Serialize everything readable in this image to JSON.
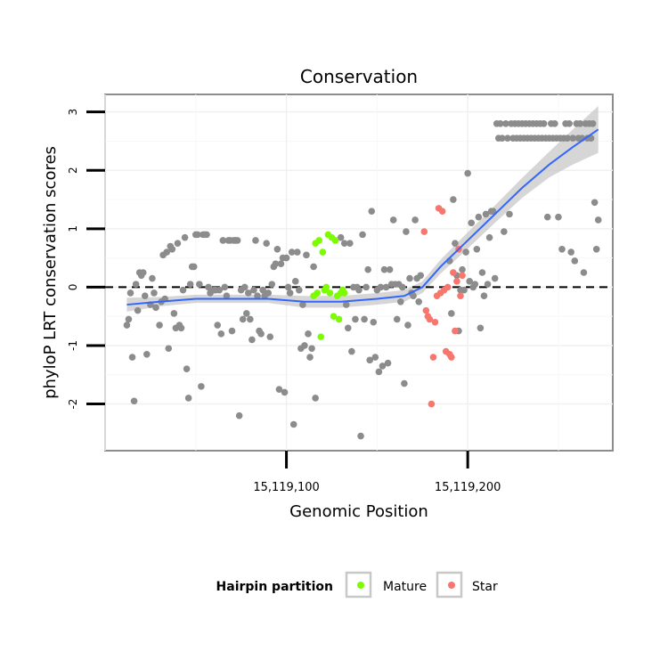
{
  "chart_data": {
    "type": "scatter",
    "title": "Conservation",
    "xlabel": "Genomic Position",
    "ylabel": "phyloP LRT conservation scores",
    "xlim": [
      15119000,
      15119280
    ],
    "ylim": [
      -2.8,
      3.3
    ],
    "x_ticks": [
      {
        "value": 15119100,
        "label": "15,119,100"
      },
      {
        "value": 15119200,
        "label": "15,119,200"
      }
    ],
    "y_ticks": [
      {
        "value": -2,
        "label": "-2"
      },
      {
        "value": -1,
        "label": "-1"
      },
      {
        "value": 0,
        "label": "0"
      },
      {
        "value": 1,
        "label": "1"
      },
      {
        "value": 2,
        "label": "2"
      },
      {
        "value": 3,
        "label": "3"
      }
    ],
    "grid": true,
    "reference_line": {
      "y": 0,
      "style": "dashed"
    },
    "legend": {
      "title": "Hairpin partition",
      "position": "bottom",
      "entries": [
        {
          "label": "Mature",
          "color": "#7cfc00"
        },
        {
          "label": "Star",
          "color": "#f8766d"
        }
      ]
    },
    "colors": {
      "other": "#8c8c8c",
      "mature": "#7cfc00",
      "star": "#f8766d",
      "smooth": "#3366ff",
      "ribbon": "#c8c8c8"
    },
    "series": [
      {
        "partition": "other",
        "points": [
          [
            15119012,
            -0.65
          ],
          [
            15119013,
            -0.55
          ],
          [
            15119014,
            -0.1
          ],
          [
            15119015,
            -1.2
          ],
          [
            15119016,
            -1.95
          ],
          [
            15119017,
            0.05
          ],
          [
            15119018,
            -0.4
          ],
          [
            15119019,
            0.25
          ],
          [
            15119020,
            0.2
          ],
          [
            15119021,
            0.25
          ],
          [
            15119022,
            -0.15
          ],
          [
            15119023,
            -1.15
          ],
          [
            15119025,
            -0.3
          ],
          [
            15119026,
            0.15
          ],
          [
            15119027,
            -0.1
          ],
          [
            15119028,
            -0.35
          ],
          [
            15119030,
            -0.65
          ],
          [
            15119031,
            -0.25
          ],
          [
            15119032,
            0.55
          ],
          [
            15119033,
            -0.2
          ],
          [
            15119034,
            0.6
          ],
          [
            15119035,
            -1.05
          ],
          [
            15119036,
            0.7
          ],
          [
            15119037,
            0.65
          ],
          [
            15119038,
            -0.45
          ],
          [
            15119039,
            -0.7
          ],
          [
            15119040,
            0.75
          ],
          [
            15119041,
            -0.65
          ],
          [
            15119042,
            -0.7
          ],
          [
            15119043,
            -0.05
          ],
          [
            15119044,
            0.85
          ],
          [
            15119045,
            -1.4
          ],
          [
            15119046,
            -1.9
          ],
          [
            15119047,
            0.05
          ],
          [
            15119048,
            0.35
          ],
          [
            15119049,
            0.35
          ],
          [
            15119050,
            0.9
          ],
          [
            15119051,
            0.9
          ],
          [
            15119052,
            0.05
          ],
          [
            15119053,
            -1.7
          ],
          [
            15119054,
            0.9
          ],
          [
            15119055,
            0.9
          ],
          [
            15119056,
            0.9
          ],
          [
            15119057,
            0.0
          ],
          [
            15119058,
            -0.1
          ],
          [
            15119060,
            -0.05
          ],
          [
            15119061,
            -0.05
          ],
          [
            15119062,
            -0.65
          ],
          [
            15119063,
            -0.05
          ],
          [
            15119064,
            -0.8
          ],
          [
            15119065,
            0.8
          ],
          [
            15119066,
            0.0
          ],
          [
            15119067,
            -0.15
          ],
          [
            15119068,
            0.8
          ],
          [
            15119069,
            0.8
          ],
          [
            15119070,
            -0.75
          ],
          [
            15119071,
            0.8
          ],
          [
            15119072,
            0.8
          ],
          [
            15119073,
            0.8
          ],
          [
            15119074,
            -2.2
          ],
          [
            15119075,
            -0.05
          ],
          [
            15119076,
            -0.55
          ],
          [
            15119077,
            0.0
          ],
          [
            15119078,
            -0.45
          ],
          [
            15119079,
            -0.1
          ],
          [
            15119080,
            -0.55
          ],
          [
            15119081,
            -0.9
          ],
          [
            15119082,
            -0.05
          ],
          [
            15119083,
            0.8
          ],
          [
            15119084,
            -0.15
          ],
          [
            15119085,
            -0.75
          ],
          [
            15119086,
            -0.8
          ],
          [
            15119087,
            -0.05
          ],
          [
            15119088,
            -0.15
          ],
          [
            15119089,
            0.75
          ],
          [
            15119090,
            -0.1
          ],
          [
            15119091,
            -0.85
          ],
          [
            15119092,
            0.05
          ],
          [
            15119093,
            0.35
          ],
          [
            15119094,
            0.4
          ],
          [
            15119095,
            0.65
          ],
          [
            15119096,
            -1.75
          ],
          [
            15119097,
            0.4
          ],
          [
            15119098,
            0.5
          ],
          [
            15119099,
            -1.8
          ],
          [
            15119100,
            0.5
          ],
          [
            15119101,
            0.0
          ],
          [
            15119102,
            -0.1
          ],
          [
            15119103,
            0.6
          ],
          [
            15119104,
            -2.35
          ],
          [
            15119105,
            0.1
          ],
          [
            15119106,
            0.6
          ],
          [
            15119107,
            -0.05
          ],
          [
            15119108,
            -1.05
          ],
          [
            15119109,
            -0.3
          ],
          [
            15119110,
            -1.0
          ],
          [
            15119111,
            0.55
          ],
          [
            15119112,
            -0.8
          ],
          [
            15119113,
            -1.2
          ],
          [
            15119114,
            -1.05
          ],
          [
            15119115,
            0.35
          ],
          [
            15119116,
            -1.9
          ],
          [
            15119130,
            0.85
          ],
          [
            15119131,
            -0.05
          ],
          [
            15119132,
            0.75
          ],
          [
            15119133,
            -0.3
          ],
          [
            15119134,
            -0.7
          ],
          [
            15119135,
            0.75
          ],
          [
            15119136,
            -1.1
          ],
          [
            15119137,
            0.0
          ],
          [
            15119138,
            -0.55
          ],
          [
            15119139,
            0.0
          ],
          [
            15119140,
            -0.05
          ],
          [
            15119141,
            -2.55
          ],
          [
            15119142,
            0.9
          ],
          [
            15119143,
            -0.55
          ],
          [
            15119144,
            0.0
          ],
          [
            15119145,
            0.3
          ],
          [
            15119146,
            -1.25
          ],
          [
            15119147,
            1.3
          ],
          [
            15119148,
            -0.6
          ],
          [
            15119149,
            -1.2
          ],
          [
            15119150,
            -0.05
          ],
          [
            15119151,
            -1.45
          ],
          [
            15119152,
            0.0
          ],
          [
            15119153,
            -1.35
          ],
          [
            15119154,
            0.3
          ],
          [
            15119155,
            0.0
          ],
          [
            15119156,
            -1.3
          ],
          [
            15119157,
            0.3
          ],
          [
            15119158,
            0.05
          ],
          [
            15119159,
            1.15
          ],
          [
            15119160,
            0.05
          ],
          [
            15119161,
            -0.55
          ],
          [
            15119162,
            0.05
          ],
          [
            15119163,
            -0.25
          ],
          [
            15119164,
            0.0
          ],
          [
            15119165,
            -1.65
          ],
          [
            15119166,
            0.95
          ],
          [
            15119167,
            -0.65
          ],
          [
            15119168,
            0.15
          ],
          [
            15119169,
            -0.1
          ],
          [
            15119170,
            -0.15
          ],
          [
            15119171,
            1.15
          ],
          [
            15119172,
            0.15
          ],
          [
            15119173,
            -0.25
          ],
          [
            15119174,
            0.2
          ],
          [
            15119190,
            0.45
          ],
          [
            15119191,
            -0.45
          ],
          [
            15119192,
            1.5
          ],
          [
            15119193,
            0.75
          ],
          [
            15119194,
            0.2
          ],
          [
            15119195,
            -0.75
          ],
          [
            15119196,
            -0.05
          ],
          [
            15119197,
            0.3
          ],
          [
            15119198,
            -0.05
          ],
          [
            15119199,
            0.6
          ],
          [
            15119200,
            1.95
          ],
          [
            15119201,
            0.1
          ],
          [
            15119202,
            1.1
          ],
          [
            15119203,
            0.0
          ],
          [
            15119204,
            0.05
          ],
          [
            15119205,
            0.65
          ],
          [
            15119206,
            1.2
          ],
          [
            15119207,
            -0.7
          ],
          [
            15119208,
            0.25
          ],
          [
            15119209,
            -0.15
          ],
          [
            15119210,
            1.25
          ],
          [
            15119211,
            0.05
          ],
          [
            15119212,
            0.85
          ],
          [
            15119213,
            1.3
          ],
          [
            15119214,
            1.3
          ],
          [
            15119215,
            0.15
          ],
          [
            15119216,
            2.8
          ],
          [
            15119217,
            2.55
          ],
          [
            15119218,
            2.8
          ],
          [
            15119219,
            2.55
          ],
          [
            15119220,
            0.95
          ],
          [
            15119221,
            2.8
          ],
          [
            15119222,
            2.55
          ],
          [
            15119223,
            1.25
          ],
          [
            15119224,
            2.8
          ],
          [
            15119225,
            2.55
          ],
          [
            15119226,
            2.8
          ],
          [
            15119227,
            2.55
          ],
          [
            15119228,
            2.8
          ],
          [
            15119229,
            2.55
          ],
          [
            15119230,
            2.8
          ],
          [
            15119231,
            2.55
          ],
          [
            15119232,
            2.8
          ],
          [
            15119233,
            2.55
          ],
          [
            15119234,
            2.8
          ],
          [
            15119235,
            2.55
          ],
          [
            15119236,
            2.8
          ],
          [
            15119237,
            2.55
          ],
          [
            15119238,
            2.8
          ],
          [
            15119239,
            2.55
          ],
          [
            15119240,
            2.8
          ],
          [
            15119241,
            2.55
          ],
          [
            15119242,
            2.8
          ],
          [
            15119243,
            2.55
          ],
          [
            15119244,
            1.2
          ],
          [
            15119245,
            2.55
          ],
          [
            15119246,
            2.8
          ],
          [
            15119247,
            2.55
          ],
          [
            15119248,
            2.8
          ],
          [
            15119249,
            2.55
          ],
          [
            15119250,
            1.2
          ],
          [
            15119251,
            2.55
          ],
          [
            15119252,
            0.65
          ],
          [
            15119253,
            2.55
          ],
          [
            15119254,
            2.8
          ],
          [
            15119255,
            2.55
          ],
          [
            15119256,
            2.8
          ],
          [
            15119257,
            0.6
          ],
          [
            15119258,
            2.55
          ],
          [
            15119259,
            0.45
          ],
          [
            15119260,
            2.8
          ],
          [
            15119261,
            2.55
          ],
          [
            15119262,
            2.8
          ],
          [
            15119263,
            2.55
          ],
          [
            15119264,
            0.25
          ],
          [
            15119265,
            2.8
          ],
          [
            15119266,
            2.55
          ],
          [
            15119267,
            2.8
          ],
          [
            15119268,
            2.55
          ],
          [
            15119269,
            2.8
          ],
          [
            15119270,
            1.45
          ],
          [
            15119271,
            0.65
          ],
          [
            15119272,
            1.15
          ]
        ]
      },
      {
        "partition": "mature",
        "points": [
          [
            15119115,
            -0.15
          ],
          [
            15119116,
            0.75
          ],
          [
            15119117,
            -0.1
          ],
          [
            15119118,
            0.8
          ],
          [
            15119119,
            -0.85
          ],
          [
            15119120,
            0.6
          ],
          [
            15119121,
            -0.05
          ],
          [
            15119122,
            0.0
          ],
          [
            15119123,
            0.9
          ],
          [
            15119124,
            -0.1
          ],
          [
            15119125,
            0.85
          ],
          [
            15119126,
            -0.5
          ],
          [
            15119127,
            0.8
          ],
          [
            15119128,
            -0.15
          ],
          [
            15119129,
            -0.55
          ],
          [
            15119130,
            -0.1
          ],
          [
            15119131,
            -0.05
          ],
          [
            15119132,
            -0.1
          ]
        ]
      },
      {
        "partition": "star",
        "points": [
          [
            15119176,
            0.95
          ],
          [
            15119177,
            -0.4
          ],
          [
            15119178,
            -0.5
          ],
          [
            15119179,
            -0.55
          ],
          [
            15119180,
            -2.0
          ],
          [
            15119181,
            -1.2
          ],
          [
            15119182,
            -0.6
          ],
          [
            15119183,
            -0.15
          ],
          [
            15119184,
            1.35
          ],
          [
            15119185,
            -0.1
          ],
          [
            15119186,
            1.3
          ],
          [
            15119187,
            -0.05
          ],
          [
            15119188,
            -1.1
          ],
          [
            15119189,
            0.0
          ],
          [
            15119190,
            -1.15
          ],
          [
            15119191,
            -1.2
          ],
          [
            15119192,
            0.25
          ],
          [
            15119193,
            -0.75
          ],
          [
            15119194,
            0.1
          ],
          [
            15119195,
            0.65
          ],
          [
            15119196,
            -0.15
          ],
          [
            15119197,
            0.2
          ]
        ]
      }
    ],
    "smooth": {
      "method": "loess",
      "x": [
        15119012,
        15119030,
        15119050,
        15119070,
        15119090,
        15119110,
        15119130,
        15119150,
        15119165,
        15119175,
        15119185,
        15119200,
        15119215,
        15119230,
        15119245,
        15119258,
        15119272
      ],
      "y": [
        -0.3,
        -0.25,
        -0.2,
        -0.2,
        -0.2,
        -0.25,
        -0.25,
        -0.2,
        -0.15,
        0.0,
        0.35,
        0.8,
        1.25,
        1.7,
        2.1,
        2.4,
        2.7
      ],
      "se": [
        0.12,
        0.08,
        0.07,
        0.07,
        0.07,
        0.1,
        0.1,
        0.1,
        0.1,
        0.1,
        0.12,
        0.14,
        0.15,
        0.17,
        0.22,
        0.3,
        0.4
      ]
    }
  }
}
